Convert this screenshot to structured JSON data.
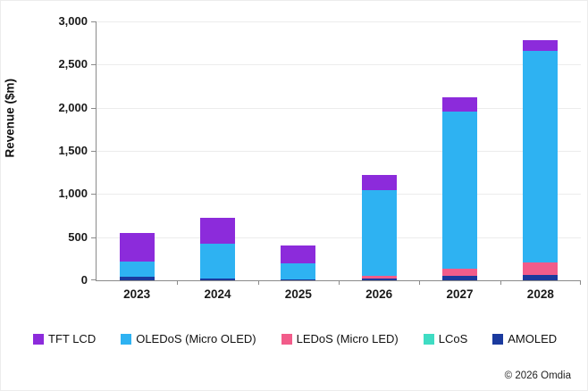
{
  "chart_data": {
    "type": "bar",
    "stacked": true,
    "title": "",
    "xlabel": "",
    "ylabel": "Revenue ($m)",
    "ylim": [
      0,
      3000
    ],
    "ytick_step": 500,
    "grid": true,
    "legend_position": "bottom",
    "categories": [
      "2023",
      "2024",
      "2025",
      "2026",
      "2027",
      "2028"
    ],
    "series": [
      {
        "name": "AMOLED",
        "color": "#1b3a9e",
        "values": [
          40,
          25,
          10,
          25,
          55,
          60
        ]
      },
      {
        "name": "LCoS",
        "color": "#3fdcc3",
        "values": [
          0,
          0,
          0,
          0,
          0,
          0
        ]
      },
      {
        "name": "LEDoS (Micro LED)",
        "color": "#f25c8a",
        "values": [
          0,
          0,
          0,
          30,
          75,
          150
        ]
      },
      {
        "name": "OLEDoS (Micro OLED)",
        "color": "#2eb2f2",
        "values": [
          180,
          400,
          190,
          995,
          1830,
          2450
        ]
      },
      {
        "name": "TFT LCD",
        "color": "#8c2bdb",
        "values": [
          330,
          300,
          200,
          170,
          160,
          120
        ]
      }
    ],
    "legend_order": [
      "TFT LCD",
      "OLEDoS (Micro OLED)",
      "LEDoS (Micro LED)",
      "LCoS",
      "AMOLED"
    ]
  },
  "footer": {
    "copyright": "© 2026 Omdia"
  }
}
